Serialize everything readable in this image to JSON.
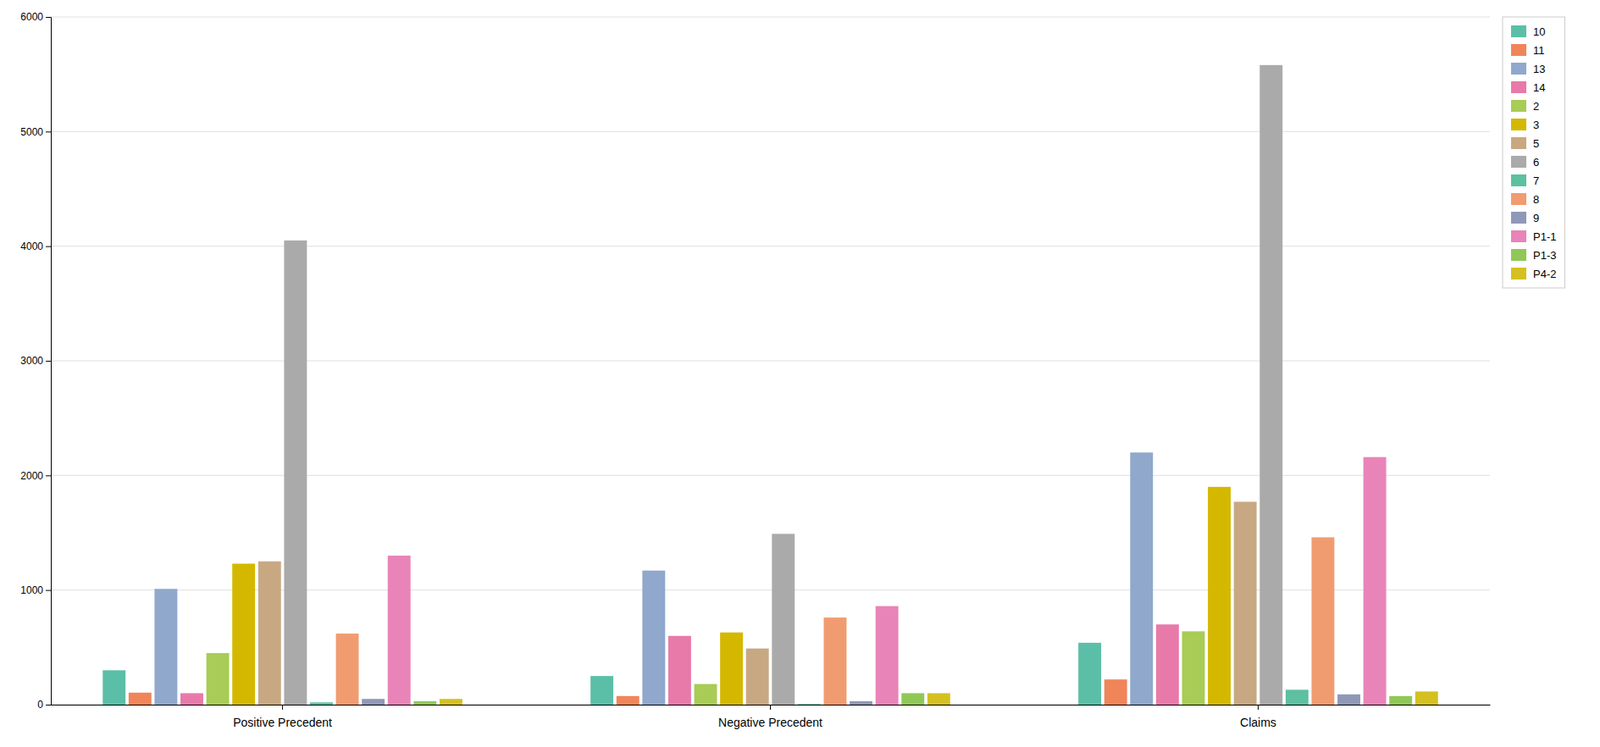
{
  "chart_data": {
    "type": "bar",
    "categories": [
      "Positive Precedent",
      "Negative Precedent",
      "Claims"
    ],
    "series": [
      {
        "name": "10",
        "color": "#5bbfa8",
        "values": [
          300,
          250,
          540
        ]
      },
      {
        "name": "11",
        "color": "#f0855a",
        "values": [
          105,
          75,
          220
        ]
      },
      {
        "name": "13",
        "color": "#8fa8cc",
        "values": [
          1010,
          1170,
          2200
        ]
      },
      {
        "name": "14",
        "color": "#e87aaa",
        "values": [
          100,
          600,
          700
        ]
      },
      {
        "name": "2",
        "color": "#a8cc55",
        "values": [
          450,
          180,
          640
        ]
      },
      {
        "name": "3",
        "color": "#d4b800",
        "values": [
          1230,
          630,
          1900
        ]
      },
      {
        "name": "5",
        "color": "#c8a882",
        "values": [
          1250,
          490,
          1770
        ]
      },
      {
        "name": "6",
        "color": "#aaaaaa",
        "values": [
          4050,
          1490,
          5580
        ]
      },
      {
        "name": "7",
        "color": "#5dc0a0",
        "values": [
          20,
          5,
          130
        ]
      },
      {
        "name": "8",
        "color": "#f09c70",
        "values": [
          620,
          760,
          1460
        ]
      },
      {
        "name": "9",
        "color": "#9098b8",
        "values": [
          50,
          30,
          90
        ]
      },
      {
        "name": "P1-1",
        "color": "#e884b8",
        "values": [
          1300,
          860,
          2160
        ]
      },
      {
        "name": "P1-3",
        "color": "#90c858",
        "values": [
          30,
          100,
          75
        ]
      },
      {
        "name": "P4-2",
        "color": "#d4c020",
        "values": [
          50,
          100,
          115
        ]
      }
    ],
    "ylim": [
      0,
      6000
    ],
    "yticks": [
      0,
      1000,
      2000,
      3000,
      4000,
      5000,
      6000
    ],
    "grid": true,
    "legend": "right"
  }
}
